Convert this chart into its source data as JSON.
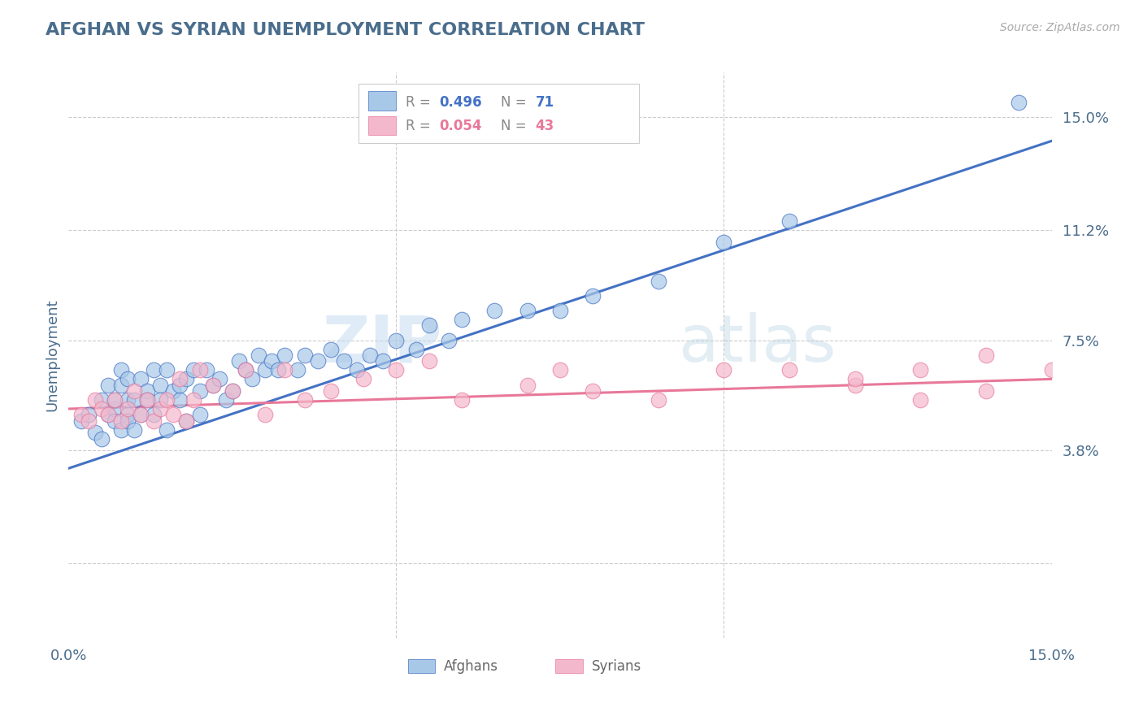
{
  "title": "AFGHAN VS SYRIAN UNEMPLOYMENT CORRELATION CHART",
  "source_text": "Source: ZipAtlas.com",
  "ylabel": "Unemployment",
  "xlim": [
    0.0,
    0.15
  ],
  "ylim": [
    -0.025,
    0.165
  ],
  "yticks": [
    0.038,
    0.075,
    0.112,
    0.15
  ],
  "ytick_labels": [
    "3.8%",
    "7.5%",
    "11.2%",
    "15.0%"
  ],
  "xticks": [
    0.0,
    0.05,
    0.1,
    0.15
  ],
  "xtick_labels": [
    "0.0%",
    "",
    "",
    "15.0%"
  ],
  "afghan_color": "#A8C8E8",
  "syrian_color": "#F4B8CC",
  "afghan_line_color": "#4472C4",
  "syrian_line_color": "#E8789A",
  "afghan_R": 0.496,
  "afghan_N": 71,
  "syrian_R": 0.054,
  "syrian_N": 43,
  "watermark_zip": "ZIP",
  "watermark_atlas": "atlas",
  "background_color": "#ffffff",
  "grid_color": "#cccccc",
  "title_color": "#4a6d8c",
  "tick_color": "#4a6d8c",
  "legend_border_color": "#cccccc",
  "legend_text_gray": "#888888",
  "legend_blue": "#4472C4",
  "legend_pink": "#E8789A",
  "source_color": "#aaaaaa",
  "bottom_legend_color": "#666666",
  "afghan_x": [
    0.002,
    0.003,
    0.004,
    0.005,
    0.005,
    0.006,
    0.006,
    0.007,
    0.007,
    0.007,
    0.008,
    0.008,
    0.008,
    0.009,
    0.009,
    0.009,
    0.009,
    0.01,
    0.01,
    0.011,
    0.011,
    0.012,
    0.012,
    0.013,
    0.013,
    0.014,
    0.014,
    0.015,
    0.015,
    0.016,
    0.017,
    0.017,
    0.018,
    0.018,
    0.019,
    0.02,
    0.02,
    0.021,
    0.022,
    0.023,
    0.024,
    0.025,
    0.026,
    0.027,
    0.028,
    0.029,
    0.03,
    0.031,
    0.032,
    0.033,
    0.035,
    0.036,
    0.038,
    0.04,
    0.042,
    0.044,
    0.046,
    0.048,
    0.05,
    0.053,
    0.055,
    0.058,
    0.06,
    0.065,
    0.07,
    0.075,
    0.08,
    0.09,
    0.1,
    0.11,
    0.145
  ],
  "afghan_y": [
    0.048,
    0.05,
    0.044,
    0.055,
    0.042,
    0.06,
    0.05,
    0.052,
    0.048,
    0.055,
    0.06,
    0.045,
    0.065,
    0.05,
    0.055,
    0.048,
    0.062,
    0.055,
    0.045,
    0.062,
    0.05,
    0.058,
    0.055,
    0.065,
    0.05,
    0.06,
    0.055,
    0.065,
    0.045,
    0.058,
    0.055,
    0.06,
    0.062,
    0.048,
    0.065,
    0.058,
    0.05,
    0.065,
    0.06,
    0.062,
    0.055,
    0.058,
    0.068,
    0.065,
    0.062,
    0.07,
    0.065,
    0.068,
    0.065,
    0.07,
    0.065,
    0.07,
    0.068,
    0.072,
    0.068,
    0.065,
    0.07,
    0.068,
    0.075,
    0.072,
    0.08,
    0.075,
    0.082,
    0.085,
    0.085,
    0.085,
    0.09,
    0.095,
    0.108,
    0.115,
    0.155
  ],
  "syrian_x": [
    0.002,
    0.003,
    0.004,
    0.005,
    0.006,
    0.007,
    0.008,
    0.009,
    0.01,
    0.011,
    0.012,
    0.013,
    0.014,
    0.015,
    0.016,
    0.017,
    0.018,
    0.019,
    0.02,
    0.022,
    0.025,
    0.027,
    0.03,
    0.033,
    0.036,
    0.04,
    0.045,
    0.05,
    0.055,
    0.06,
    0.07,
    0.075,
    0.08,
    0.09,
    0.1,
    0.11,
    0.12,
    0.13,
    0.14,
    0.15,
    0.12,
    0.13,
    0.14
  ],
  "syrian_y": [
    0.05,
    0.048,
    0.055,
    0.052,
    0.05,
    0.055,
    0.048,
    0.052,
    0.058,
    0.05,
    0.055,
    0.048,
    0.052,
    0.055,
    0.05,
    0.062,
    0.048,
    0.055,
    0.065,
    0.06,
    0.058,
    0.065,
    0.05,
    0.065,
    0.055,
    0.058,
    0.062,
    0.065,
    0.068,
    0.055,
    0.06,
    0.065,
    0.058,
    0.055,
    0.065,
    0.065,
    0.06,
    0.065,
    0.07,
    0.065,
    0.062,
    0.055,
    0.058
  ],
  "af_line_x0": 0.0,
  "af_line_x1": 0.15,
  "af_line_y0": 0.032,
  "af_line_y1": 0.142,
  "sy_line_x0": 0.0,
  "sy_line_x1": 0.15,
  "sy_line_y0": 0.052,
  "sy_line_y1": 0.062
}
